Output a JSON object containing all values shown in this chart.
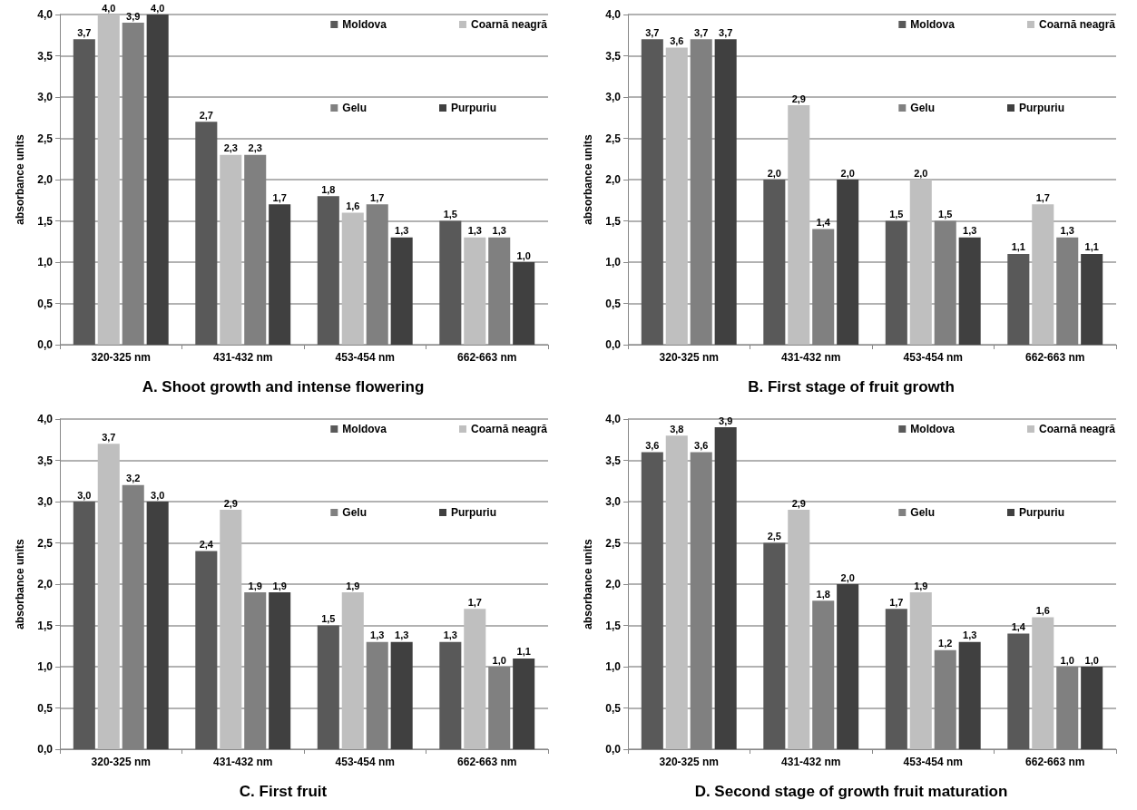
{
  "chart_data": [
    {
      "type": "bar",
      "title": "A. Shoot growth and intense flowering",
      "ylabel": "absorbance units",
      "categories": [
        "320-325 nm",
        "431-432 nm",
        "453-454 nm",
        "662-663 nm"
      ],
      "series": [
        {
          "name": "Moldova",
          "color": "#595959",
          "values": [
            3.7,
            2.7,
            1.8,
            1.5
          ],
          "value_labels": [
            "3,7",
            "2,7",
            "1,8",
            "1,5"
          ]
        },
        {
          "name": "Coarnă neagră",
          "color": "#bfbfbf",
          "values": [
            4.0,
            2.3,
            1.6,
            1.3
          ],
          "value_labels": [
            "4,0",
            "2,3",
            "1,6",
            "1,3"
          ]
        },
        {
          "name": "Gelu",
          "color": "#808080",
          "values": [
            3.9,
            2.3,
            1.7,
            1.3
          ],
          "value_labels": [
            "3,9",
            "2,3",
            "1,7",
            "1,3"
          ]
        },
        {
          "name": "Purpuriu",
          "color": "#404040",
          "values": [
            4.0,
            1.7,
            1.3,
            1.0
          ],
          "value_labels": [
            "4,0",
            "1,7",
            "1,3",
            "1,0"
          ]
        }
      ],
      "ylim": [
        0,
        4
      ],
      "yticks": [
        {
          "value": 0,
          "label": "0,0"
        },
        {
          "value": 0.5,
          "label": "0,5"
        },
        {
          "value": 1,
          "label": "1,0"
        },
        {
          "value": 1.5,
          "label": "1,5"
        },
        {
          "value": 2,
          "label": "2,0"
        },
        {
          "value": 2.5,
          "label": "2,5"
        },
        {
          "value": 3,
          "label": "3,0"
        },
        {
          "value": 3.5,
          "label": "3,5"
        },
        {
          "value": 4,
          "label": "4,0"
        }
      ],
      "grid": "y",
      "legend": "top right"
    },
    {
      "type": "bar",
      "title": "B. First stage of fruit growth",
      "ylabel": "absorbance units",
      "categories": [
        "320-325 nm",
        "431-432 nm",
        "453-454 nm",
        "662-663 nm"
      ],
      "series": [
        {
          "name": "Moldova",
          "color": "#595959",
          "values": [
            3.7,
            2.0,
            1.5,
            1.1
          ],
          "value_labels": [
            "3,7",
            "2,0",
            "1,5",
            "1,1"
          ]
        },
        {
          "name": "Coarnă neagră",
          "color": "#bfbfbf",
          "values": [
            3.6,
            2.9,
            2.0,
            1.7
          ],
          "value_labels": [
            "3,6",
            "2,9",
            "2,0",
            "1,7"
          ]
        },
        {
          "name": "Gelu",
          "color": "#808080",
          "values": [
            3.7,
            1.4,
            1.5,
            1.3
          ],
          "value_labels": [
            "3,7",
            "1,4",
            "1,5",
            "1,3"
          ]
        },
        {
          "name": "Purpuriu",
          "color": "#404040",
          "values": [
            3.7,
            2.0,
            1.3,
            1.1
          ],
          "value_labels": [
            "3,7",
            "2,0",
            "1,3",
            "1,1"
          ]
        }
      ],
      "ylim": [
        0,
        4
      ],
      "yticks": [
        {
          "value": 0,
          "label": "0,0"
        },
        {
          "value": 0.5,
          "label": "0,5"
        },
        {
          "value": 1,
          "label": "1,0"
        },
        {
          "value": 1.5,
          "label": "1,5"
        },
        {
          "value": 2,
          "label": "2,0"
        },
        {
          "value": 2.5,
          "label": "2,5"
        },
        {
          "value": 3,
          "label": "3,0"
        },
        {
          "value": 3.5,
          "label": "3,5"
        },
        {
          "value": 4,
          "label": "4,0"
        }
      ],
      "grid": "y",
      "legend": "top right"
    },
    {
      "type": "bar",
      "title": "C. First fruit",
      "ylabel": "absorbance units",
      "categories": [
        "320-325 nm",
        "431-432 nm",
        "453-454 nm",
        "662-663 nm"
      ],
      "series": [
        {
          "name": "Moldova",
          "color": "#595959",
          "values": [
            3.0,
            2.4,
            1.5,
            1.3
          ],
          "value_labels": [
            "3,0",
            "2,4",
            "1,5",
            "1,3"
          ]
        },
        {
          "name": "Coarnă neagră",
          "color": "#bfbfbf",
          "values": [
            3.7,
            2.9,
            1.9,
            1.7
          ],
          "value_labels": [
            "3,7",
            "2,9",
            "1,9",
            "1,7"
          ]
        },
        {
          "name": "Gelu",
          "color": "#808080",
          "values": [
            3.2,
            1.9,
            1.3,
            1.0
          ],
          "value_labels": [
            "3,2",
            "1,9",
            "1,3",
            "1,0"
          ]
        },
        {
          "name": "Purpuriu",
          "color": "#404040",
          "values": [
            3.0,
            1.9,
            1.3,
            1.1
          ],
          "value_labels": [
            "3,0",
            "1,9",
            "1,3",
            "1,1"
          ]
        }
      ],
      "ylim": [
        0,
        4
      ],
      "yticks": [
        {
          "value": 0,
          "label": "0,0"
        },
        {
          "value": 0.5,
          "label": "0,5"
        },
        {
          "value": 1,
          "label": "1,0"
        },
        {
          "value": 1.5,
          "label": "1,5"
        },
        {
          "value": 2,
          "label": "2,0"
        },
        {
          "value": 2.5,
          "label": "2,5"
        },
        {
          "value": 3,
          "label": "3,0"
        },
        {
          "value": 3.5,
          "label": "3,5"
        },
        {
          "value": 4,
          "label": "4,0"
        }
      ],
      "grid": "y",
      "legend": "top right"
    },
    {
      "type": "bar",
      "title": "D. Second stage of growth fruit maturation",
      "ylabel": "absorbance units",
      "categories": [
        "320-325 nm",
        "431-432 nm",
        "453-454 nm",
        "662-663 nm"
      ],
      "series": [
        {
          "name": "Moldova",
          "color": "#595959",
          "values": [
            3.6,
            2.5,
            1.7,
            1.4
          ],
          "value_labels": [
            "3,6",
            "2,5",
            "1,7",
            "1,4"
          ]
        },
        {
          "name": "Coarnă neagră",
          "color": "#bfbfbf",
          "values": [
            3.8,
            2.9,
            1.9,
            1.6
          ],
          "value_labels": [
            "3,8",
            "2,9",
            "1,9",
            "1,6"
          ]
        },
        {
          "name": "Gelu",
          "color": "#808080",
          "values": [
            3.6,
            1.8,
            1.2,
            1.0
          ],
          "value_labels": [
            "3,6",
            "1,8",
            "1,2",
            "1,0"
          ]
        },
        {
          "name": "Purpuriu",
          "color": "#404040",
          "values": [
            3.9,
            2.0,
            1.3,
            1.0
          ],
          "value_labels": [
            "3,9",
            "2,0",
            "1,3",
            "1,0"
          ]
        }
      ],
      "ylim": [
        0,
        4
      ],
      "yticks": [
        {
          "value": 0,
          "label": "0,0"
        },
        {
          "value": 0.5,
          "label": "0,5"
        },
        {
          "value": 1,
          "label": "1,0"
        },
        {
          "value": 1.5,
          "label": "1,5"
        },
        {
          "value": 2,
          "label": "2,0"
        },
        {
          "value": 2.5,
          "label": "2,5"
        },
        {
          "value": 3,
          "label": "3,0"
        },
        {
          "value": 3.5,
          "label": "3,5"
        },
        {
          "value": 4,
          "label": "4,0"
        }
      ],
      "grid": "y",
      "legend": "top right"
    }
  ]
}
